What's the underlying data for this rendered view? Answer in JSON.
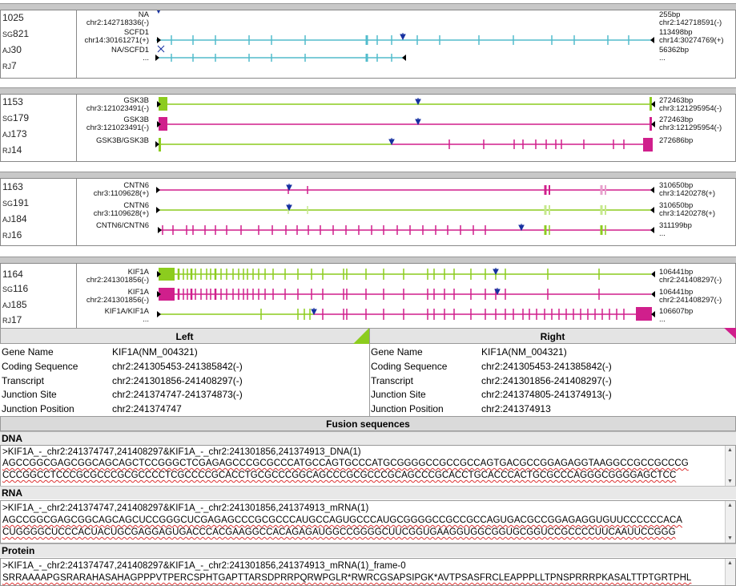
{
  "colors": {
    "cyan": "#52bccc",
    "green": "#8ccc1e",
    "magenta": "#d01f8c",
    "blue": "#1630a0"
  },
  "panels": [
    {
      "ids": {
        "n": "1025",
        "sg": "821",
        "aj": "30",
        "rj": "7"
      },
      "tracks": [
        {
          "name": "NA",
          "coord": "chr2:142718336(-)",
          "len": "255bp",
          "end": "chr2:142718591(-)"
        },
        {
          "name": "SCFD1",
          "coord": "chr14:30161271(+)",
          "len": "113498bp",
          "end": "chr14:30274769(+)"
        },
        {
          "name": "NA/SCFD1",
          "coord": "...",
          "len": "56362bp",
          "end": "..."
        }
      ]
    },
    {
      "ids": {
        "n": "1153",
        "sg": "179",
        "aj": "173",
        "rj": "14"
      },
      "tracks": [
        {
          "name": "GSK3B",
          "coord": "chr3:121023491(-)",
          "len": "272463bp",
          "end": "chr3:121295954(-)"
        },
        {
          "name": "GSK3B",
          "coord": "chr3:121023491(-)",
          "len": "272463bp",
          "end": "chr3:121295954(-)"
        },
        {
          "name": "GSK3B/GSK3B",
          "coord": "...",
          "len": "272686bp",
          "end": ""
        }
      ]
    },
    {
      "ids": {
        "n": "1163",
        "sg": "191",
        "aj": "184",
        "rj": "16"
      },
      "tracks": [
        {
          "name": "CNTN6",
          "coord": "chr3:1109628(+)",
          "len": "310650bp",
          "end": "chr3:1420278(+)"
        },
        {
          "name": "CNTN6",
          "coord": "chr3:1109628(+)",
          "len": "310650bp",
          "end": "chr3:1420278(+)"
        },
        {
          "name": "CNTN6/CNTN6",
          "coord": "...",
          "len": "311199bp",
          "end": "..."
        }
      ]
    },
    {
      "ids": {
        "n": "1164",
        "sg": "116",
        "aj": "185",
        "rj": "17"
      },
      "tracks": [
        {
          "name": "KIF1A",
          "coord": "chr2:241301856(-)",
          "len": "106441bp",
          "end": "chr2:241408297(-)"
        },
        {
          "name": "KIF1A",
          "coord": "chr2:241301856(-)",
          "len": "106441bp",
          "end": "chr2:241408297(-)"
        },
        {
          "name": "KIF1A/KIF1A",
          "coord": "...",
          "len": "106607bp",
          "end": "..."
        }
      ]
    }
  ],
  "details": {
    "left_title": "Left",
    "right_title": "Right",
    "labels": [
      "Gene Name",
      "Coding Sequence",
      "Transcript",
      "Junction Site",
      "Junction Position"
    ],
    "left": [
      "KIF1A(NM_004321)",
      "chr2:241305453-241385842(-)",
      "chr2:241301856-241408297(-)",
      "chr2:241374747-241374873(-)",
      "chr2:241374747"
    ],
    "right": [
      "KIF1A(NM_004321)",
      "chr2:241305453-241385842(-)",
      "chr2:241301856-241408297(-)",
      "chr2:241374805-241374913(-)",
      "chr2:241374913"
    ]
  },
  "fusion_title": "Fusion sequences",
  "sequences": [
    {
      "label": "DNA",
      "header": ">KIF1A_-_chr2:241374747,241408297&KIF1A_-_chr2:241301856,241374913_DNA(1)",
      "line1": "AGCCGGCGAGCGGCAGCAGCTCCGGGCTCGAGAGCCCGCGCCCATGCCAGTGCCCATGCGGGGCCGCCGCCAGTGACGCCGGAGAGGTAAGGCCGCCGCCCG",
      "line2": "CCCGGCCTCCCGCGCCCGCGCCCCTCGCCCCGCACCTGCGCCCGGCAGCCCGCGCCCGCAGCCCGCACCTGCACCCACTGCGCCCAGGGCGGGGAGCTCC"
    },
    {
      "label": "RNA",
      "header": ">KIF1A_-_chr2:241374747,241408297&KIF1A_-_chr2:241301856,241374913_mRNA(1)",
      "line1": "AGCCGGCGAGCGGCAGCAGCUCCGGGCUCGAGAGCCCGCGCCCAUGCCAGUGCCCAUGCGGGGCCGCCGCCAGUGACGCCGGAGAGGUGUUCCCCCCACA",
      "line2": "CUGGGGCUCCCACUACUGCGAGGAGUGACCCACGAAGGCCACAGAGAUGGCCGGGGCUUCGGUGAAGGUGGCGGUGCGGUCCGCCCCUUCAAUUCCGGG"
    },
    {
      "label": "Protein",
      "header": ">KIF1A_-_chr2:241374747,241408297&KIF1A_-_chr2:241301856,241374913_mRNA(1)_frame-0",
      "line1": "SRRAAAAPGSRARAHASAHAGPPPVTPERCSPHTGAPTTARSDPRRPQRWPGLR*RWRCGSAPSIPGK*AVTPSASFRCLEAPPPLLTPNSPRRRPKASALTTPTGRTPHL",
      "line2": ""
    }
  ]
}
